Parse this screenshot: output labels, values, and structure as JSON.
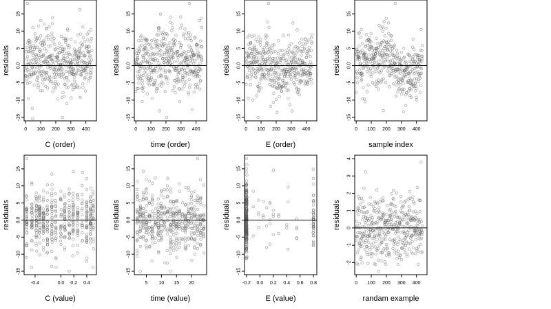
{
  "chart_data": [
    {
      "type": "scatter",
      "xlabel": "C (order)",
      "ylabel": "residuals",
      "xticks": [
        0,
        100,
        200,
        300,
        400
      ],
      "yticks": [
        -15,
        -10,
        -5,
        0,
        5,
        10,
        15
      ],
      "ytick_labels": [
        "-15",
        "-10",
        "-5",
        "0.0",
        "5",
        "10",
        "15"
      ],
      "xlim": [
        -10,
        470
      ],
      "ylim": [
        -16,
        19
      ],
      "hline": 0,
      "points": {
        "mode": "order",
        "n": 440,
        "center": [
          [
            0,
            1
          ],
          [
            150,
            1
          ],
          [
            300,
            0
          ],
          [
            440,
            1.5
          ]
        ],
        "sd": 4.5,
        "seed": 11,
        "extremes": [
          [
            12,
            18
          ],
          [
            245,
            -15
          ]
        ]
      }
    },
    {
      "type": "scatter",
      "xlabel": "time (order)",
      "ylabel": "residuals",
      "xticks": [
        0,
        100,
        200,
        300,
        400
      ],
      "yticks": [
        -15,
        -10,
        -5,
        0,
        5,
        10,
        15
      ],
      "ytick_labels": [
        "-15",
        "-10",
        "-5",
        "0.0",
        "5",
        "10",
        "15"
      ],
      "xlim": [
        -10,
        470
      ],
      "ylim": [
        -16,
        19
      ],
      "hline": 0,
      "points": {
        "mode": "order",
        "n": 440,
        "center": [
          [
            0,
            0
          ],
          [
            150,
            1
          ],
          [
            300,
            1
          ],
          [
            440,
            1
          ]
        ],
        "sd": 4.8,
        "seed": 23,
        "extremes": [
          [
            355,
            18
          ],
          [
            205,
            -15
          ]
        ]
      }
    },
    {
      "type": "scatter",
      "xlabel": "E (order)",
      "ylabel": "residuals",
      "xticks": [
        0,
        100,
        200,
        300,
        400
      ],
      "yticks": [
        -15,
        -10,
        -5,
        0,
        5,
        10,
        15
      ],
      "ytick_labels": [
        "-15",
        "-10",
        "-5",
        "0.0",
        "5",
        "10",
        "15"
      ],
      "xlim": [
        -10,
        470
      ],
      "ylim": [
        -16,
        19
      ],
      "hline": 0,
      "points": {
        "mode": "order",
        "n": 440,
        "center": [
          [
            0,
            1
          ],
          [
            120,
            2
          ],
          [
            220,
            -3
          ],
          [
            330,
            0
          ],
          [
            440,
            1
          ]
        ],
        "sd": 4.2,
        "seed": 37,
        "extremes": [
          [
            150,
            18
          ],
          [
            80,
            -15
          ]
        ]
      }
    },
    {
      "type": "scatter",
      "xlabel": "sample index",
      "ylabel": "residuals",
      "xticks": [
        0,
        100,
        200,
        300,
        400
      ],
      "yticks": [
        -15,
        -10,
        -5,
        0,
        5,
        10,
        15
      ],
      "ytick_labels": [
        "-15",
        "-10",
        "-5",
        "0.0",
        "5",
        "10",
        "15"
      ],
      "xlim": [
        -10,
        470
      ],
      "ylim": [
        -16,
        19
      ],
      "hline": 0,
      "points": {
        "mode": "order",
        "n": 440,
        "center": [
          [
            0,
            1
          ],
          [
            100,
            1
          ],
          [
            200,
            4
          ],
          [
            320,
            -4
          ],
          [
            440,
            1
          ]
        ],
        "sd": 4.0,
        "seed": 53,
        "extremes": [
          [
            260,
            18
          ],
          [
            180,
            -13
          ]
        ]
      }
    },
    {
      "type": "scatter",
      "xlabel": "C (value)",
      "ylabel": "residuals",
      "xticks": [
        -0.4,
        0.0,
        0.2,
        0.4
      ],
      "xtick_labels": [
        "-0.4",
        "0.0",
        "0.2",
        "0.4"
      ],
      "yticks": [
        -15,
        -10,
        -5,
        0,
        5,
        10,
        15
      ],
      "ytick_labels": [
        "-15",
        "-10",
        "-5",
        "0.0",
        "5",
        "10",
        "15"
      ],
      "xlim": [
        -0.57,
        0.55
      ],
      "ylim": [
        -16,
        19
      ],
      "hline": 0,
      "points": {
        "mode": "columns",
        "columns": [
          -0.53,
          -0.45,
          -0.38,
          -0.33,
          -0.27,
          -0.21,
          -0.14,
          -0.08,
          0.0,
          0.06,
          0.13,
          0.19,
          0.26,
          0.33,
          0.4,
          0.46,
          0.5
        ],
        "per": 26,
        "sd": 4.6,
        "seed": 71,
        "extremes": [
          [
            -0.53,
            18
          ],
          [
            0.13,
            -15
          ]
        ]
      }
    },
    {
      "type": "scatter",
      "xlabel": "time (value)",
      "ylabel": "residuals",
      "xticks": [
        5,
        10,
        15,
        20
      ],
      "xtick_labels": [
        "5",
        "10",
        "15",
        "20"
      ],
      "yticks": [
        -15,
        -10,
        -5,
        0,
        5,
        10,
        15
      ],
      "ytick_labels": [
        "-15",
        "-10",
        "-5",
        "0.0",
        "5",
        "10",
        "15"
      ],
      "xlim": [
        1,
        25
      ],
      "ylim": [
        -16,
        19
      ],
      "hline": 0,
      "points": {
        "mode": "columns",
        "columns": [
          2,
          3,
          4,
          5,
          6,
          7,
          8,
          9,
          10,
          11,
          12,
          13,
          14,
          15,
          16,
          17,
          18,
          19,
          20,
          21,
          22,
          23,
          24
        ],
        "per": 19,
        "sd": 4.8,
        "seed": 89,
        "extremes": [
          [
            22,
            18
          ],
          [
            13,
            -15
          ]
        ]
      }
    },
    {
      "type": "scatter",
      "xlabel": "E (value)",
      "ylabel": "residuals",
      "xticks": [
        -0.2,
        0.0,
        0.2,
        0.4,
        0.6,
        0.8
      ],
      "xtick_labels": [
        "-0.2",
        "0.0",
        "0.2",
        "0.4",
        "0.6",
        "0.8"
      ],
      "yticks": [
        -15,
        -10,
        -5,
        0,
        5,
        10,
        15
      ],
      "ytick_labels": [
        "-15",
        "-10",
        "-5",
        "0.0",
        "5",
        "10",
        "15"
      ],
      "xlim": [
        -0.23,
        0.85
      ],
      "ylim": [
        -16,
        19
      ],
      "hline": 0,
      "points": {
        "mode": "E",
        "seed": 97,
        "extremes": [
          [
            -0.2,
            18
          ]
        ]
      }
    },
    {
      "type": "scatter",
      "xlabel": "randam example",
      "ylabel": "residuals",
      "xticks": [
        0,
        100,
        200,
        300,
        400
      ],
      "yticks": [
        -2,
        -1,
        0,
        1,
        2,
        3,
        4
      ],
      "ytick_labels": [
        "-2",
        "-1",
        "0",
        "1",
        "2",
        "3",
        "4"
      ],
      "xlim": [
        -10,
        470
      ],
      "ylim": [
        -2.7,
        4.2
      ],
      "hline": 0,
      "points": {
        "mode": "order",
        "n": 440,
        "center": [
          [
            0,
            0
          ],
          [
            440,
            0
          ]
        ],
        "sd": 1.0,
        "seed": 101,
        "extremes": [
          [
            430,
            3.8
          ],
          [
            150,
            -2.5
          ]
        ]
      }
    }
  ]
}
